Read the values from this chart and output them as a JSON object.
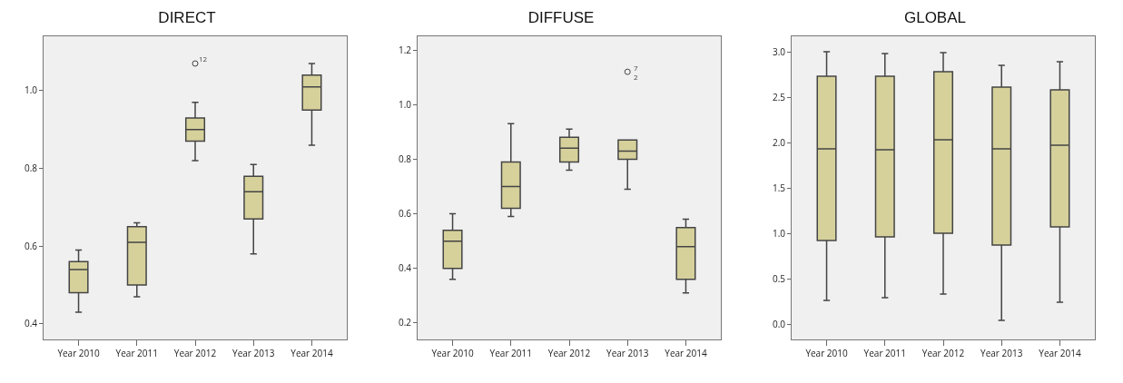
{
  "chart_data": [
    {
      "type": "box",
      "title": "DIRECT",
      "categories": [
        "Year 2010",
        "Year 2011",
        "Year 2012",
        "Year 2013",
        "Year 2014"
      ],
      "series": [
        {
          "color": "#d6d19b",
          "boxes": [
            {
              "low": 0.43,
              "q1": 0.48,
              "median": 0.54,
              "q3": 0.56,
              "high": 0.59
            },
            {
              "low": 0.47,
              "q1": 0.5,
              "median": 0.61,
              "q3": 0.65,
              "high": 0.66
            },
            {
              "low": 0.82,
              "q1": 0.87,
              "median": 0.9,
              "q3": 0.93,
              "high": 0.97,
              "outliers": [
                1.07
              ]
            },
            {
              "low": 0.58,
              "q1": 0.67,
              "median": 0.74,
              "q3": 0.78,
              "high": 0.81
            },
            {
              "low": 0.86,
              "q1": 0.95,
              "median": 1.01,
              "q3": 1.04,
              "high": 1.07
            }
          ]
        }
      ],
      "ylim": [
        0.36,
        1.14
      ],
      "yticks": [
        0.4,
        0.6,
        0.8,
        {
          "value": 1,
          "label": "1.0"
        }
      ],
      "annotations": [
        "12"
      ]
    },
    {
      "type": "box",
      "title": "DIFFUSE",
      "categories": [
        "Year 2010",
        "Year 2011",
        "Year 2012",
        "Year 2013",
        "Year 2014"
      ],
      "series": [
        {
          "color": "#d6d19b",
          "boxes": [
            {
              "low": 0.36,
              "q1": 0.4,
              "median": 0.5,
              "q3": 0.54,
              "high": 0.6
            },
            {
              "low": 0.59,
              "q1": 0.62,
              "median": 0.7,
              "q3": 0.79,
              "high": 0.93
            },
            {
              "low": 0.76,
              "q1": 0.79,
              "median": 0.84,
              "q3": 0.88,
              "high": 0.91
            },
            {
              "low": 0.69,
              "q1": 0.8,
              "median": 0.83,
              "q3": 0.87,
              "high": 0.87,
              "outliers": [
                1.12
              ]
            },
            {
              "low": 0.31,
              "q1": 0.36,
              "median": 0.48,
              "q3": 0.55,
              "high": 0.58
            }
          ]
        }
      ],
      "ylim": [
        0.14,
        1.25
      ],
      "yticks": [
        0.2,
        0.4,
        0.6,
        0.8,
        {
          "value": 1,
          "label": "1.0"
        },
        1.2
      ],
      "annotations": [
        "7",
        "2"
      ]
    },
    {
      "type": "box",
      "title": "GLOBAL",
      "categories": [
        "Year 2010",
        "Year 2011",
        "Year 2012",
        "Year 2013",
        "Year 2014"
      ],
      "series": [
        {
          "color": "#d6d19b",
          "boxes": [
            {
              "low": 0.26,
              "q1": 0.92,
              "median": 1.93,
              "q3": 2.73,
              "high": 3.0
            },
            {
              "low": 0.29,
              "q1": 0.96,
              "median": 1.92,
              "q3": 2.73,
              "high": 2.98
            },
            {
              "low": 0.33,
              "q1": 1.0,
              "median": 2.03,
              "q3": 2.78,
              "high": 2.99
            },
            {
              "low": 0.04,
              "q1": 0.87,
              "median": 1.93,
              "q3": 2.61,
              "high": 2.85
            },
            {
              "low": 0.24,
              "q1": 1.07,
              "median": 1.97,
              "q3": 2.58,
              "high": 2.89
            }
          ]
        }
      ],
      "ylim": [
        -0.17,
        3.17
      ],
      "yticks": [
        {
          "value": 0,
          "label": "0.0"
        },
        0.5,
        {
          "value": 1,
          "label": "1.0"
        },
        1.5,
        {
          "value": 2,
          "label": "2.0"
        },
        2.5,
        {
          "value": 3,
          "label": "3.0"
        }
      ]
    }
  ]
}
